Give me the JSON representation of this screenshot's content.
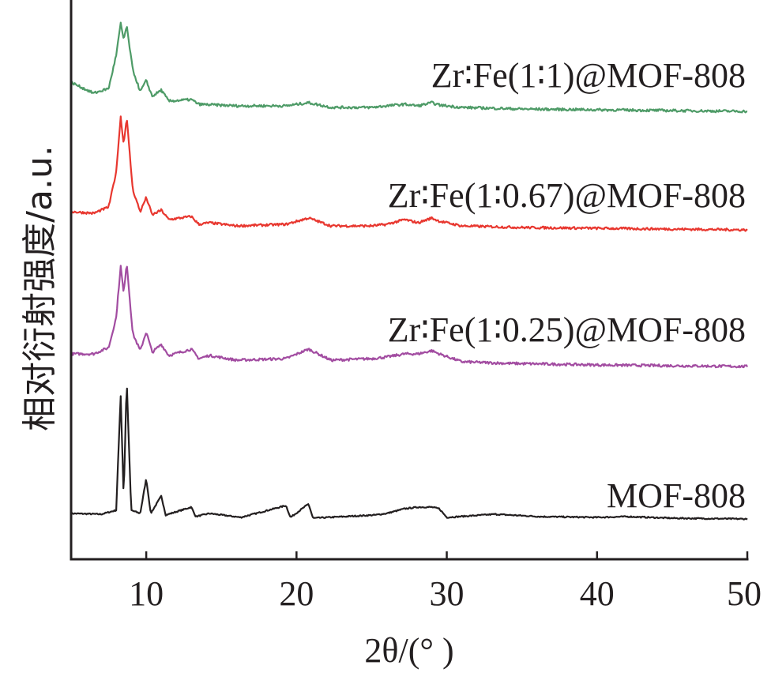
{
  "chart_data": {
    "type": "line",
    "xlabel": "2θ/(° )",
    "ylabel": "相对衍射强度/a.u.",
    "xlim": [
      5,
      50
    ],
    "xticks": [
      10,
      20,
      30,
      40,
      50
    ],
    "yticks_shown": false,
    "grid": false,
    "legend": "none",
    "peak_positions_2theta": [
      8.3,
      8.7,
      10.0,
      11.0,
      13.0,
      14.2,
      16.3,
      19.3,
      20.8,
      22.3,
      23.8,
      25.2,
      26.0,
      27.2,
      28.1,
      29.0,
      29.5,
      30.5,
      33.2,
      34.8,
      36.2,
      38.5
    ],
    "series": [
      {
        "name": "MOF-808",
        "color": "#231f20",
        "noise": 0.8,
        "points": [
          [
            5,
            16
          ],
          [
            7,
            15
          ],
          [
            8.0,
            20
          ],
          [
            8.3,
            165
          ],
          [
            8.5,
            35
          ],
          [
            8.7,
            185
          ],
          [
            9.0,
            20
          ],
          [
            9.6,
            16
          ],
          [
            10.0,
            60
          ],
          [
            10.3,
            16
          ],
          [
            11.0,
            38
          ],
          [
            11.3,
            14
          ],
          [
            13.0,
            24
          ],
          [
            13.3,
            12
          ],
          [
            14.2,
            16
          ],
          [
            16.3,
            11
          ],
          [
            19.3,
            26
          ],
          [
            19.6,
            11
          ],
          [
            20.8,
            28
          ],
          [
            21.1,
            10
          ],
          [
            25.2,
            14
          ],
          [
            26.0,
            16
          ],
          [
            27.2,
            22
          ],
          [
            28.1,
            24
          ],
          [
            29.0,
            24
          ],
          [
            29.5,
            22
          ],
          [
            30.0,
            11
          ],
          [
            33.2,
            15
          ],
          [
            36.2,
            12
          ],
          [
            40,
            11
          ],
          [
            42,
            12
          ],
          [
            45,
            10
          ],
          [
            50,
            9
          ]
        ]
      },
      {
        "name": "Zr∶Fe(1∶0.25)@MOF-808",
        "color": "#a24ca1",
        "noise": 1.6,
        "points": [
          [
            5,
            24
          ],
          [
            6.5,
            24
          ],
          [
            7.5,
            32
          ],
          [
            8.0,
            70
          ],
          [
            8.3,
            135
          ],
          [
            8.5,
            100
          ],
          [
            8.7,
            140
          ],
          [
            9.1,
            50
          ],
          [
            9.6,
            28
          ],
          [
            10.0,
            52
          ],
          [
            10.4,
            26
          ],
          [
            11.0,
            36
          ],
          [
            11.5,
            22
          ],
          [
            13.0,
            30
          ],
          [
            13.5,
            18
          ],
          [
            14.2,
            22
          ],
          [
            16,
            16
          ],
          [
            19.3,
            18
          ],
          [
            20.8,
            30
          ],
          [
            22.3,
            16
          ],
          [
            25,
            18
          ],
          [
            26.0,
            20
          ],
          [
            27.2,
            24
          ],
          [
            28.1,
            24
          ],
          [
            29.0,
            28
          ],
          [
            29.5,
            24
          ],
          [
            31,
            14
          ],
          [
            34,
            12
          ],
          [
            40,
            10
          ],
          [
            45,
            9
          ],
          [
            50,
            8
          ]
        ]
      },
      {
        "name": "Zr∶Fe(1∶0.67)@MOF-808",
        "color": "#e8372f",
        "noise": 1.5,
        "points": [
          [
            5,
            30
          ],
          [
            6.5,
            28
          ],
          [
            7.5,
            36
          ],
          [
            8.0,
            80
          ],
          [
            8.3,
            150
          ],
          [
            8.5,
            115
          ],
          [
            8.7,
            150
          ],
          [
            9.1,
            58
          ],
          [
            9.6,
            30
          ],
          [
            10.0,
            48
          ],
          [
            10.4,
            26
          ],
          [
            11.0,
            32
          ],
          [
            11.5,
            20
          ],
          [
            13.0,
            24
          ],
          [
            13.5,
            14
          ],
          [
            14.2,
            16
          ],
          [
            16,
            12
          ],
          [
            19.3,
            14
          ],
          [
            20.8,
            22
          ],
          [
            22.3,
            12
          ],
          [
            25,
            12
          ],
          [
            26.0,
            14
          ],
          [
            27.2,
            20
          ],
          [
            28.1,
            16
          ],
          [
            29.0,
            22
          ],
          [
            29.5,
            18
          ],
          [
            31,
            12
          ],
          [
            35,
            10
          ],
          [
            40,
            9
          ],
          [
            45,
            8
          ],
          [
            50,
            7
          ]
        ]
      },
      {
        "name": "Zr∶Fe(1∶1)@MOF-808",
        "color": "#4e9b67",
        "noise": 1.6,
        "points": [
          [
            5,
            44
          ],
          [
            5.4,
            40
          ],
          [
            6.5,
            30
          ],
          [
            7.5,
            36
          ],
          [
            8.0,
            78
          ],
          [
            8.3,
            118
          ],
          [
            8.5,
            98
          ],
          [
            8.7,
            115
          ],
          [
            9.1,
            60
          ],
          [
            9.6,
            32
          ],
          [
            10.0,
            46
          ],
          [
            10.4,
            26
          ],
          [
            11.0,
            34
          ],
          [
            11.5,
            20
          ],
          [
            13.0,
            22
          ],
          [
            13.5,
            16
          ],
          [
            16,
            14
          ],
          [
            19.3,
            14
          ],
          [
            20.8,
            18
          ],
          [
            22.3,
            12
          ],
          [
            25,
            12
          ],
          [
            26.0,
            14
          ],
          [
            27.2,
            16
          ],
          [
            28.1,
            14
          ],
          [
            29.0,
            18
          ],
          [
            29.5,
            15
          ],
          [
            31,
            12
          ],
          [
            35,
            10
          ],
          [
            40,
            9
          ],
          [
            45,
            8
          ],
          [
            50,
            7
          ]
        ]
      }
    ]
  }
}
